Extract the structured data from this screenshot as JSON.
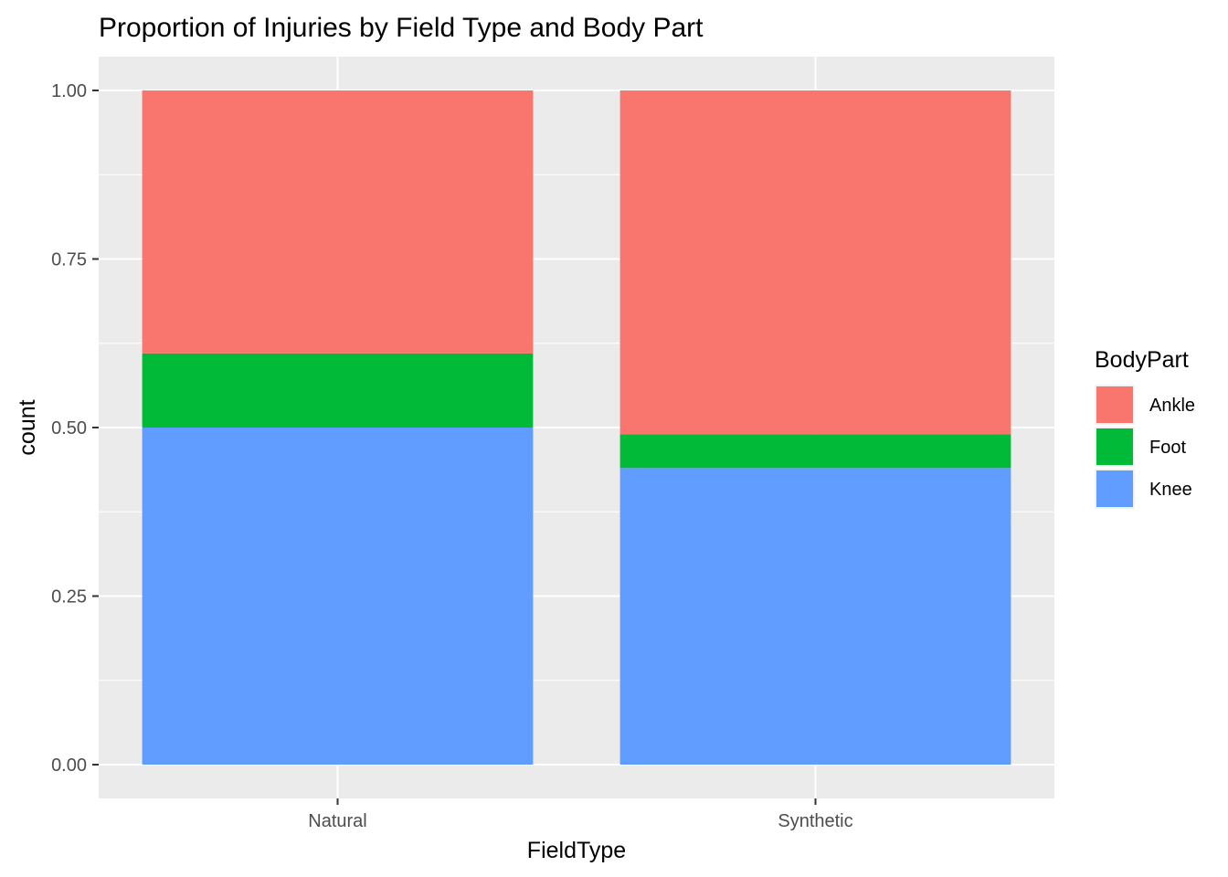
{
  "chart_data": {
    "type": "bar",
    "stacked": true,
    "position": "fill",
    "title": "Proportion of Injuries by Field Type and Body Part",
    "xlabel": "FieldType",
    "ylabel": "count",
    "ylim": [
      0,
      1
    ],
    "y_ticks": [
      "0.00",
      "0.25",
      "0.50",
      "0.75",
      "1.00"
    ],
    "y_tick_values": [
      0,
      0.25,
      0.5,
      0.75,
      1.0
    ],
    "categories": [
      "Natural",
      "Synthetic"
    ],
    "series": [
      {
        "name": "Knee",
        "color": "#619CFF",
        "values": [
          0.5,
          0.44
        ]
      },
      {
        "name": "Foot",
        "color": "#00BA38",
        "values": [
          0.11,
          0.05
        ]
      },
      {
        "name": "Ankle",
        "color": "#F8766D",
        "values": [
          0.39,
          0.51
        ]
      }
    ],
    "legend": {
      "title": "BodyPart",
      "placement": "right",
      "entries": [
        {
          "label": "Ankle",
          "color": "#F8766D"
        },
        {
          "label": "Foot",
          "color": "#00BA38"
        },
        {
          "label": "Knee",
          "color": "#619CFF"
        }
      ]
    },
    "grid": true,
    "panel_background": "#EBEBEB",
    "grid_color": "#FFFFFF"
  }
}
